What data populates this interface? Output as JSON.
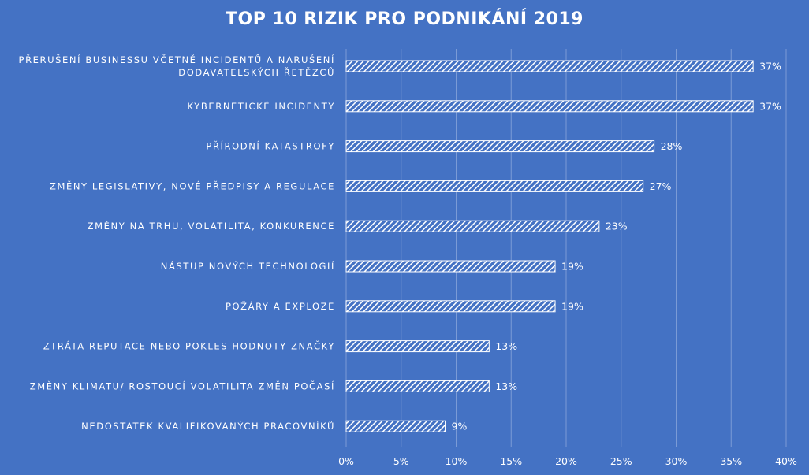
{
  "chart_data": {
    "type": "bar",
    "orientation": "horizontal",
    "title": "TOP 10 RIZIK PRO PODNIKÁNÍ 2019",
    "categories": [
      [
        "PŘERUŠENÍ BUSINESSU VČETNĚ INCIDENTŮ A NARUŠENÍ",
        "DODAVATELSKÝCH ŘETĚZCŮ"
      ],
      [
        "KYBERNETICKÉ INCIDENTY"
      ],
      [
        "PŘÍRODNÍ KATASTROFY"
      ],
      [
        "ZMĚNY LEGISLATIVY, NOVÉ PŘEDPISY A REGULACE"
      ],
      [
        "ZMĚNY NA TRHU, VOLATILITA, KONKURENCE"
      ],
      [
        "NÁSTUP NOVÝCH TECHNOLOGIÍ"
      ],
      [
        "POŽÁRY A EXPLOZE"
      ],
      [
        "ZTRÁTA REPUTACE NEBO POKLES HODNOTY ZNAČKY"
      ],
      [
        "ZMĚNY KLIMATU/ ROSTOUCÍ VOLATILITA ZMĚN POČASÍ"
      ],
      [
        "NEDOSTATEK KVALIFIKOVANÝCH PRACOVNÍKŮ"
      ]
    ],
    "values": [
      37,
      37,
      28,
      27,
      23,
      19,
      19,
      13,
      13,
      9
    ],
    "data_labels": [
      "37%",
      "37%",
      "28%",
      "27%",
      "23%",
      "19%",
      "19%",
      "13%",
      "13%",
      "9%"
    ],
    "xlim": [
      0,
      40
    ],
    "xticks": [
      0,
      5,
      10,
      15,
      20,
      25,
      30,
      35,
      40
    ],
    "xtick_labels": [
      "0%",
      "5%",
      "10%",
      "15%",
      "20%",
      "25%",
      "30%",
      "35%",
      "40%"
    ],
    "xlabel": "",
    "ylabel": "",
    "grid": true,
    "legend": "none",
    "bar_pattern": "diagonal-hatch",
    "colors": {
      "background": "#4472C4",
      "bar_fill": "#FFFFFF",
      "text": "#FFFFFF",
      "grid": "#7B9BD6"
    }
  }
}
